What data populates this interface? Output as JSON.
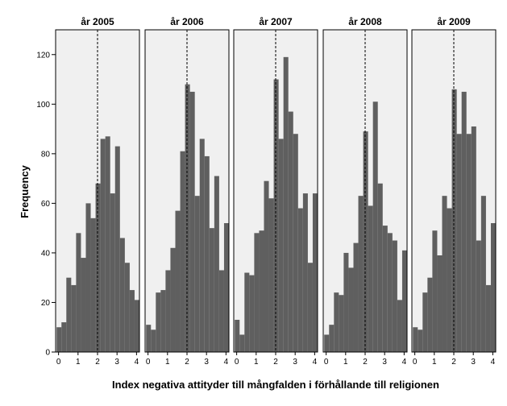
{
  "chart_data": {
    "type": "bar",
    "xlabel": "Index negativa attityder till mångfalden i förhållande till religionen",
    "ylabel": "Frequency",
    "ylim": [
      0,
      130
    ],
    "yticks": [
      0,
      20,
      40,
      60,
      80,
      100,
      120
    ],
    "xlim": [
      -0.15,
      4.15
    ],
    "xticks": [
      0,
      1,
      2,
      3,
      4
    ],
    "bin_starts": [
      -0.1,
      0.15,
      0.4,
      0.65,
      0.9,
      1.15,
      1.4,
      1.65,
      1.9,
      2.15,
      2.4,
      2.65,
      2.9,
      3.15,
      3.4,
      3.65,
      3.9
    ],
    "bin_width": 0.25,
    "reference_line_x": 2.0,
    "grid": false,
    "series": [
      {
        "name": "år 2005",
        "values": [
          10,
          12,
          30,
          27,
          48,
          38,
          60,
          54,
          68,
          86,
          87,
          64,
          83,
          46,
          36,
          25,
          21
        ]
      },
      {
        "name": "år 2006",
        "values": [
          11,
          9,
          24,
          25,
          33,
          42,
          57,
          81,
          108,
          105,
          63,
          86,
          79,
          50,
          71,
          33,
          52
        ]
      },
      {
        "name": "år 2007",
        "values": [
          13,
          7,
          32,
          31,
          48,
          49,
          69,
          62,
          110,
          86,
          119,
          97,
          88,
          58,
          64,
          36,
          64
        ]
      },
      {
        "name": "år 2008",
        "values": [
          7,
          11,
          24,
          23,
          40,
          34,
          44,
          63,
          89,
          59,
          101,
          68,
          51,
          48,
          45,
          21,
          41
        ]
      },
      {
        "name": "år 2009",
        "values": [
          10,
          9,
          24,
          30,
          49,
          39,
          63,
          58,
          106,
          88,
          105,
          88,
          91,
          45,
          63,
          27,
          52
        ]
      }
    ]
  }
}
